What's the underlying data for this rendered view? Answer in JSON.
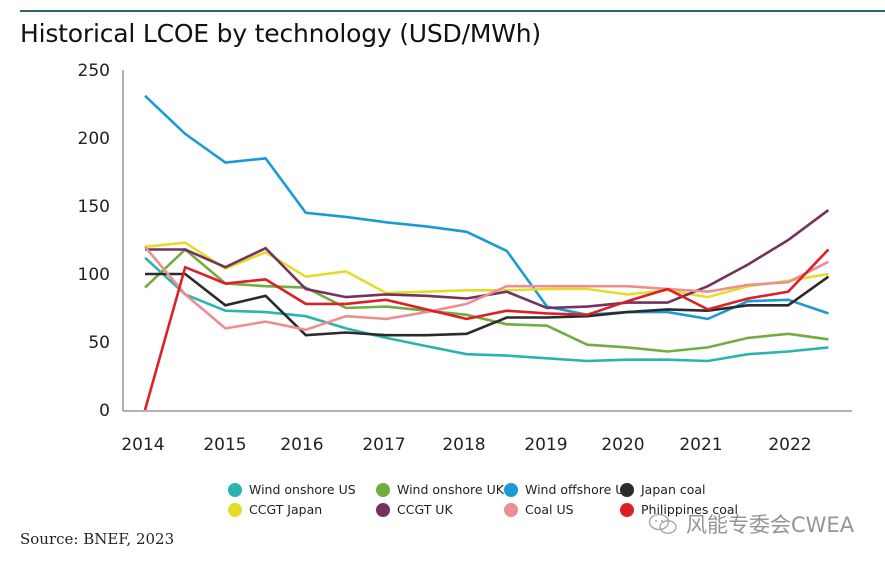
{
  "chart_data": {
    "type": "line",
    "title": "Historical LCOE by technology (USD/MWh)",
    "xlabel": "",
    "ylabel": "",
    "ylim": [
      0,
      250
    ],
    "yticks": [
      "0",
      "50",
      "100",
      "150",
      "200",
      "250"
    ],
    "ytick_values": [
      0,
      50,
      100,
      150,
      200,
      250
    ],
    "xtick_labels": [
      "2014",
      "2015",
      "2016",
      "2017",
      "2018",
      "2019",
      "2020",
      "2021",
      "2022"
    ],
    "x": [
      "1H 2014",
      "2H 2014",
      "1H 2015",
      "2H 2015",
      "1H 2016",
      "2H 2016",
      "1H 2017",
      "2H 2017",
      "1H 2018",
      "2H 2018",
      "1H 2019",
      "2H 2019",
      "1H 2020",
      "2H 2020",
      "1H 2021",
      "2H 2021",
      "1H 2022",
      "2H 2022"
    ],
    "grid": false,
    "legend_position": "bottom",
    "series": [
      {
        "name": "Wind onshore US",
        "color": "#2bb3b1",
        "values": [
          112,
          85,
          73,
          72,
          69,
          60,
          53,
          47,
          41,
          40,
          38,
          36,
          37,
          37,
          36,
          41,
          43,
          46
        ]
      },
      {
        "name": "Wind onshore UK",
        "color": "#72ad3f",
        "values": [
          90,
          118,
          93,
          91,
          90,
          75,
          76,
          73,
          70,
          63,
          62,
          48,
          46,
          43,
          46,
          53,
          56,
          52
        ]
      },
      {
        "name": "Wind offshore UK",
        "color": "#1c9ad6",
        "values": [
          231,
          203,
          182,
          185,
          145,
          142,
          138,
          135,
          131,
          117,
          76,
          70,
          72,
          72,
          67,
          80,
          81,
          71
        ]
      },
      {
        "name": "Japan coal",
        "color": "#2b2b2b",
        "values": [
          100,
          100,
          77,
          84,
          55,
          57,
          55,
          55,
          56,
          68,
          68,
          69,
          72,
          74,
          73,
          77,
          77,
          98
        ]
      },
      {
        "name": "CCGT Japan",
        "color": "#e5dc2a",
        "values": [
          120,
          123,
          104,
          116,
          98,
          102,
          86,
          87,
          88,
          88,
          89,
          89,
          85,
          88,
          83,
          91,
          95,
          100
        ]
      },
      {
        "name": "CCGT UK",
        "color": "#74325f",
        "values": [
          118,
          118,
          105,
          119,
          89,
          83,
          85,
          84,
          82,
          87,
          75,
          76,
          79,
          79,
          91,
          107,
          125,
          147
        ]
      },
      {
        "name": "Coal US",
        "color": "#ec8e92",
        "values": [
          120,
          85,
          60,
          65,
          59,
          69,
          67,
          72,
          78,
          91,
          91,
          91,
          91,
          89,
          87,
          92,
          94,
          109
        ]
      },
      {
        "name": "Philippines coal",
        "color": "#dd2027",
        "values": [
          0,
          105,
          93,
          96,
          78,
          78,
          81,
          74,
          67,
          73,
          71,
          70,
          80,
          89,
          74,
          82,
          87,
          118
        ]
      }
    ]
  },
  "legend": [
    {
      "label": "Wind onshore US",
      "color": "#2bb3b1"
    },
    {
      "label": "Wind onshore UK",
      "color": "#72ad3f"
    },
    {
      "label": "Wind offshore UK",
      "color": "#1c9ad6"
    },
    {
      "label": "Japan coal",
      "color": "#2b2b2b"
    },
    {
      "label": "CCGT Japan",
      "color": "#e5dc2a"
    },
    {
      "label": "CCGT UK",
      "color": "#74325f"
    },
    {
      "label": "Coal US",
      "color": "#ec8e92"
    },
    {
      "label": "Philippines coal",
      "color": "#dd2027"
    }
  ],
  "source": "Source: BNEF, 2023",
  "watermark": "风能专委会CWEA"
}
